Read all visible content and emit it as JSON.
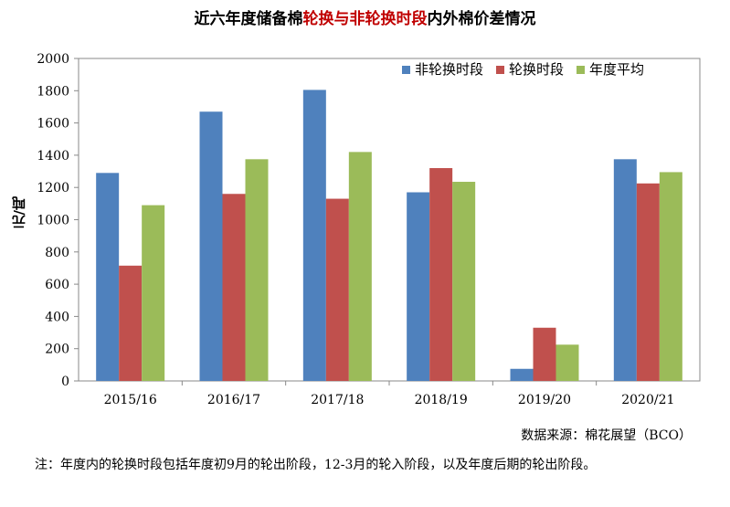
{
  "title_parts": {
    "prefix": "近六年度储备棉",
    "highlight": "轮换与非轮换时段",
    "suffix": "内外棉价差情况"
  },
  "source": "数据来源：棉花展望（BCO）",
  "note": "注：年度内的轮换时段包括年度初9月的轮出阶段，12-3月的轮入阶段，以及年度后期的轮出阶段。",
  "chart_data": {
    "type": "bar",
    "ylabel": "元/吨",
    "ylim": [
      0,
      2000
    ],
    "yticks": [
      0,
      200,
      400,
      600,
      800,
      1000,
      1200,
      1400,
      1600,
      1800,
      2000
    ],
    "grid": false,
    "legend_position": "top-right",
    "categories": [
      "2015/16",
      "2016/17",
      "2017/18",
      "2018/19",
      "2019/20",
      "2020/21"
    ],
    "series": [
      {
        "name": "非轮换时段",
        "color": "#4f81bd",
        "values": [
          1290,
          1670,
          1805,
          1170,
          75,
          1375
        ]
      },
      {
        "name": "轮换时段",
        "color": "#c0504d",
        "values": [
          715,
          1160,
          1130,
          1320,
          330,
          1225
        ]
      },
      {
        "name": "年度平均",
        "color": "#9bbb59",
        "values": [
          1090,
          1375,
          1420,
          1235,
          225,
          1295
        ]
      }
    ]
  }
}
